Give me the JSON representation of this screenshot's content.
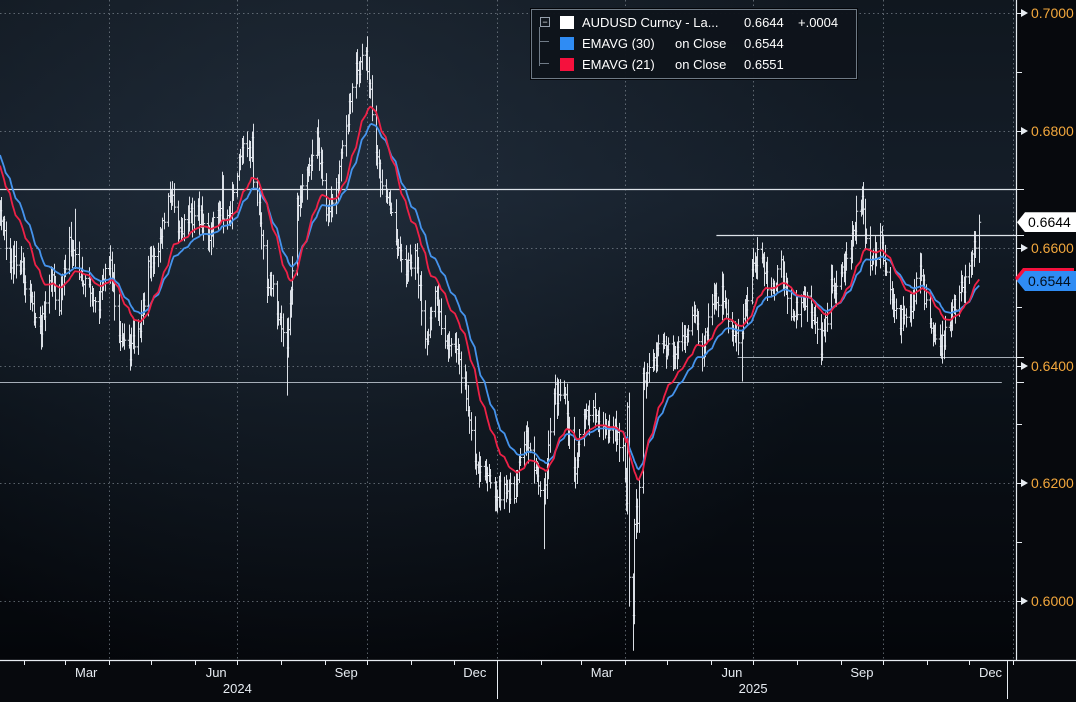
{
  "colors": {
    "bg_top": "#10171f",
    "bg_mid": "#141d28",
    "bg_low": "#0a1017",
    "bg_bottom": "#04060a",
    "axis_strip": "#07090d",
    "axis_line": "#e7ecf1",
    "grid": "#8b949e",
    "bar": "#e9eef4",
    "ema30": "#4593ec",
    "ema21": "#ee2147",
    "tick_label": "#f2a73d",
    "month_label": "#e6ebf1",
    "ref_bright": "#dde3e9",
    "ref_dim": "#a6aeb8",
    "tag_last_bg": "#ffffff",
    "tag_ema30_bg": "#2f8cf4",
    "tag_ema21_bg": "#f5113d"
  },
  "legend": {
    "collapse_glyph": "−",
    "items": [
      {
        "swatch": "#ffffff",
        "label": "AUDUSD Curncy - La...",
        "qualifier": "",
        "value": "0.6644",
        "change": "+.0004"
      },
      {
        "swatch": "#2f8cf4",
        "label": "EMAVG (30)",
        "qualifier": "on Close",
        "value": "0.6544",
        "change": ""
      },
      {
        "swatch": "#f5113d",
        "label": "EMAVG (21)",
        "qualifier": "on Close",
        "value": "0.6551",
        "change": ""
      }
    ]
  },
  "y_axis": {
    "majors": [
      {
        "label": "0.7000",
        "price": 0.7
      },
      {
        "label": "0.6800",
        "price": 0.68
      },
      {
        "label": "0.6600",
        "price": 0.66
      },
      {
        "label": "0.6400",
        "price": 0.64
      },
      {
        "label": "0.6200",
        "price": 0.62
      },
      {
        "label": "0.6000",
        "price": 0.6
      }
    ],
    "minor_step": 0.01,
    "minor_min": 0.59,
    "minor_max": 0.7
  },
  "x_axis": {
    "months": [
      {
        "label": "Mar",
        "date": "2024-03-16"
      },
      {
        "label": "Jun",
        "date": "2024-06-16"
      },
      {
        "label": "Sep",
        "date": "2024-09-16"
      },
      {
        "label": "Dec",
        "date": "2024-12-16"
      },
      {
        "label": "Mar",
        "date": "2025-03-16"
      },
      {
        "label": "Jun",
        "date": "2025-06-16"
      },
      {
        "label": "Sep",
        "date": "2025-09-16"
      },
      {
        "label": "Dec",
        "date": "2025-12-16"
      }
    ],
    "years": [
      {
        "label": "2024",
        "date": "2024-07-01"
      },
      {
        "label": "2025",
        "date": "2025-07-01"
      }
    ],
    "separators": [
      "2025-01-01",
      "2025-12-28"
    ],
    "quarter_gridlines": [
      "2024-04-01",
      "2024-07-01",
      "2024-10-01",
      "2025-01-01",
      "2025-04-01",
      "2025-07-01",
      "2025-10-01",
      "2026-01-01"
    ]
  },
  "tags": [
    {
      "type": "last",
      "text": "0.6644",
      "price": 0.6644
    },
    {
      "type": "ema30",
      "text": "0.6544",
      "price": 0.6544,
      "stripe_price": 0.6551
    }
  ],
  "ref_lines": [
    {
      "price": 0.67,
      "from": "2024-01-15",
      "to": "end",
      "tone": "bright"
    },
    {
      "price": 0.6622,
      "from": "2025-06-05",
      "to": "end",
      "tone": "bright"
    },
    {
      "price": 0.6415,
      "from": "2025-06-20",
      "to": "end",
      "tone": "dim"
    },
    {
      "price": 0.6372,
      "from": "2024-01-15",
      "to": "2025-12-24",
      "tone": "dim"
    }
  ],
  "chart_data": {
    "type": "bar",
    "symbol": "AUDUSD Curncy",
    "last_price": 0.6644,
    "change": "+.0004",
    "x_range": [
      "2024-01-15",
      "2025-12-08"
    ],
    "ylim": [
      0.59,
      0.7022
    ],
    "y_ticks": [
      0.6,
      0.62,
      0.64,
      0.66,
      0.68,
      0.7
    ],
    "grid": "dotted",
    "overlays": [
      {
        "name": "EMAVG (30) on Close",
        "period": 30,
        "value": 0.6544,
        "color": "#4593ec",
        "seed": 0.6765
      },
      {
        "name": "EMAVG (21) on Close",
        "period": 21,
        "value": 0.6551,
        "color": "#ee2147",
        "seed": 0.6748
      }
    ],
    "weekly_closes": [
      [
        "2024-01-15",
        0.666
      ],
      [
        "2024-01-22",
        0.6575
      ],
      [
        "2024-01-29",
        0.657
      ],
      [
        "2024-02-05",
        0.652
      ],
      [
        "2024-02-12",
        0.6455
      ],
      [
        "2024-02-19",
        0.656
      ],
      [
        "2024-02-26",
        0.6505
      ],
      [
        "2024-03-04",
        0.662
      ],
      [
        "2024-03-11",
        0.656
      ],
      [
        "2024-03-18",
        0.6525
      ],
      [
        "2024-03-25",
        0.651
      ],
      [
        "2024-04-01",
        0.658
      ],
      [
        "2024-04-08",
        0.6465
      ],
      [
        "2024-04-15",
        0.642
      ],
      [
        "2024-04-22",
        0.6455
      ],
      [
        "2024-04-29",
        0.656
      ],
      [
        "2024-05-06",
        0.66
      ],
      [
        "2024-05-13",
        0.669
      ],
      [
        "2024-05-20",
        0.663
      ],
      [
        "2024-05-27",
        0.665
      ],
      [
        "2024-06-03",
        0.666
      ],
      [
        "2024-06-10",
        0.6615
      ],
      [
        "2024-06-17",
        0.667
      ],
      [
        "2024-06-24",
        0.6645
      ],
      [
        "2024-07-01",
        0.674
      ],
      [
        "2024-07-08",
        0.678
      ],
      [
        "2024-07-15",
        0.669
      ],
      [
        "2024-07-22",
        0.655
      ],
      [
        "2024-07-29",
        0.65
      ],
      [
        "2024-08-05",
        0.643
      ],
      [
        "2024-08-12",
        0.667
      ],
      [
        "2024-08-19",
        0.673
      ],
      [
        "2024-08-26",
        0.679
      ],
      [
        "2024-09-02",
        0.667
      ],
      [
        "2024-09-09",
        0.67
      ],
      [
        "2024-09-16",
        0.681
      ],
      [
        "2024-09-23",
        0.69
      ],
      [
        "2024-09-30",
        0.693
      ],
      [
        "2024-10-07",
        0.675
      ],
      [
        "2024-10-14",
        0.67
      ],
      [
        "2024-10-21",
        0.66
      ],
      [
        "2024-10-28",
        0.656
      ],
      [
        "2024-11-04",
        0.658
      ],
      [
        "2024-11-11",
        0.645
      ],
      [
        "2024-11-18",
        0.651
      ],
      [
        "2024-11-25",
        0.645
      ],
      [
        "2024-12-02",
        0.643
      ],
      [
        "2024-12-09",
        0.636
      ],
      [
        "2024-12-16",
        0.624
      ],
      [
        "2024-12-23",
        0.622
      ],
      [
        "2024-12-30",
        0.619
      ],
      [
        "2025-01-06",
        0.6185
      ],
      [
        "2025-01-13",
        0.619
      ],
      [
        "2025-01-20",
        0.628
      ],
      [
        "2025-01-27",
        0.622
      ],
      [
        "2025-02-03",
        0.619
      ],
      [
        "2025-02-10",
        0.635
      ],
      [
        "2025-02-17",
        0.636
      ],
      [
        "2025-02-24",
        0.621
      ],
      [
        "2025-03-03",
        0.631
      ],
      [
        "2025-03-10",
        0.632
      ],
      [
        "2025-03-17",
        0.628
      ],
      [
        "2025-03-24",
        0.629
      ],
      [
        "2025-03-31",
        0.625
      ],
      [
        "2025-04-07",
        0.5975
      ],
      [
        "2025-04-14",
        0.637
      ],
      [
        "2025-04-21",
        0.64
      ],
      [
        "2025-04-28",
        0.644
      ],
      [
        "2025-05-05",
        0.641
      ],
      [
        "2025-05-12",
        0.645
      ],
      [
        "2025-05-19",
        0.649
      ],
      [
        "2025-05-26",
        0.643
      ],
      [
        "2025-06-02",
        0.65
      ],
      [
        "2025-06-09",
        0.653
      ],
      [
        "2025-06-16",
        0.645
      ],
      [
        "2025-06-23",
        0.6455
      ],
      [
        "2025-06-30",
        0.658
      ],
      [
        "2025-07-07",
        0.658
      ],
      [
        "2025-07-14",
        0.652
      ],
      [
        "2025-07-21",
        0.658
      ],
      [
        "2025-07-28",
        0.647
      ],
      [
        "2025-08-04",
        0.652
      ],
      [
        "2025-08-11",
        0.65
      ],
      [
        "2025-08-18",
        0.643
      ],
      [
        "2025-08-25",
        0.653
      ],
      [
        "2025-09-01",
        0.655
      ],
      [
        "2025-09-08",
        0.661
      ],
      [
        "2025-09-15",
        0.668
      ],
      [
        "2025-09-22",
        0.657
      ],
      [
        "2025-09-29",
        0.661
      ],
      [
        "2025-10-06",
        0.652
      ],
      [
        "2025-10-13",
        0.648
      ],
      [
        "2025-10-20",
        0.65
      ],
      [
        "2025-10-27",
        0.656
      ],
      [
        "2025-11-03",
        0.647
      ],
      [
        "2025-11-10",
        0.643
      ],
      [
        "2025-11-17",
        0.648
      ],
      [
        "2025-11-24",
        0.652
      ],
      [
        "2025-12-01",
        0.657
      ],
      [
        "2025-12-08",
        0.6644
      ]
    ],
    "daily_overrides": [
      {
        "d": "2024-03-08",
        "high": 0.6667
      },
      {
        "d": "2024-05-16",
        "high": 0.6714,
        "close": 0.669
      },
      {
        "d": "2024-06-20",
        "high": 0.673,
        "close": 0.67
      },
      {
        "d": "2024-07-11",
        "high": 0.6798,
        "close": 0.6788
      },
      {
        "d": "2024-08-05",
        "low": 0.6349,
        "close": 0.643
      },
      {
        "d": "2024-09-30",
        "high": 0.6942,
        "close": 0.6935
      },
      {
        "d": "2025-02-03",
        "low": 0.6088,
        "close": 0.619
      },
      {
        "d": "2025-04-03",
        "close": 0.633
      },
      {
        "d": "2025-04-04",
        "close": 0.604,
        "low": 0.599
      },
      {
        "d": "2025-04-07",
        "close": 0.5975,
        "low": 0.5915
      },
      {
        "d": "2025-04-08",
        "close": 0.613,
        "low": 0.596
      },
      {
        "d": "2025-04-09",
        "close": 0.616,
        "high": 0.619
      },
      {
        "d": "2025-06-23",
        "low": 0.6373,
        "close": 0.6455
      },
      {
        "d": "2025-09-16",
        "high": 0.6705,
        "close": 0.6688
      },
      {
        "d": "2025-12-05",
        "close": 0.66
      },
      {
        "d": "2025-12-08",
        "close": 0.6644,
        "low": 0.6575,
        "high": 0.6657
      }
    ]
  }
}
